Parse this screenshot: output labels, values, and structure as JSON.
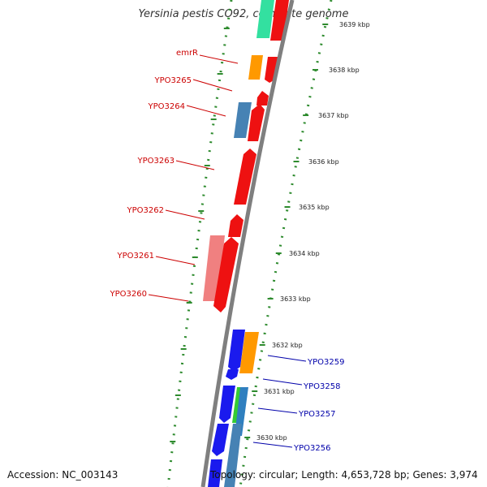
{
  "title": "Yersinia pestis CO92, complete genome",
  "footer": {
    "accession": "Accession: NC_003143",
    "summary": "Topology: circular; Length: 4,653,728 bp; Genes: 3,974"
  },
  "colors": {
    "backbone": "#7f7f7f",
    "tick": "#2e8b2e",
    "label_left": "#cc0000",
    "label_right": "#0000aa"
  },
  "kbp_labels": [
    "3639 kbp",
    "3638 kbp",
    "3637 kbp",
    "3636 kbp",
    "3635 kbp",
    "3634 kbp",
    "3633 kbp",
    "3632 kbp",
    "3631 kbp",
    "3630 kbp"
  ],
  "gene_labels_left": [
    "emrR",
    "YPO3265",
    "YPO3264",
    "YPO3263",
    "YPO3262",
    "YPO3261",
    "YPO3260"
  ],
  "gene_labels_right": [
    "YPO3259",
    "YPO3258",
    "YPO3257",
    "YPO3256"
  ]
}
